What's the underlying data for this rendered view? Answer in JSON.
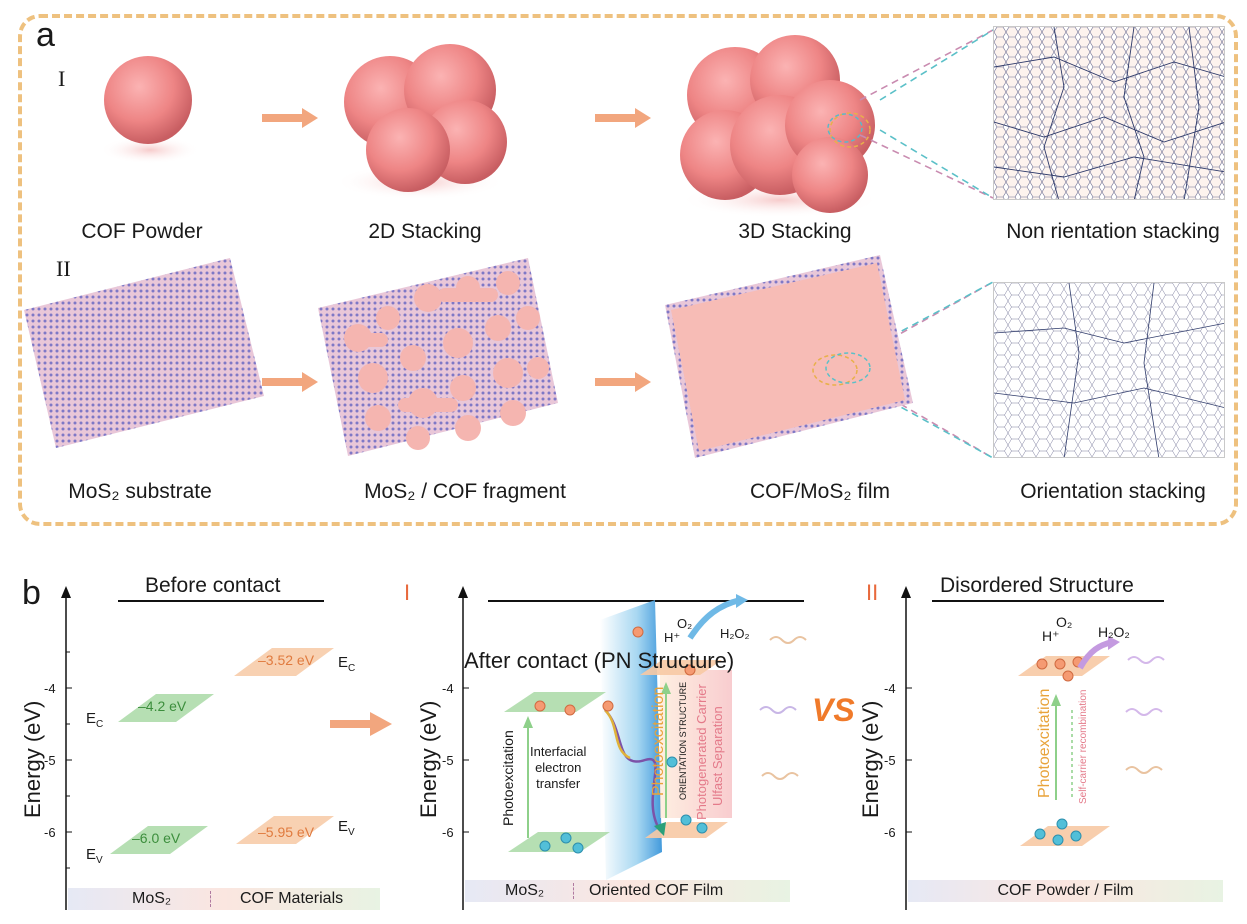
{
  "panel_a": {
    "letter": "a",
    "row1_roman": "I",
    "row2_roman": "II",
    "row1_captions": [
      "COF Powder",
      "2D Stacking",
      "3D Stacking",
      "Non rientation stacking"
    ],
    "row2_captions": [
      "MoS₂ substrate",
      "MoS₂ / COF fragment",
      "COF/MoS₂ film",
      "Orientation stacking"
    ]
  },
  "panel_b": {
    "letter": "b",
    "axis_title": "Energy (eV)",
    "ticks": [
      "-4",
      "-5",
      "-6"
    ],
    "before": {
      "heading": "Before contact",
      "levels": {
        "mos2_cb": "–4.2 eV",
        "mos2_vb": "–6.0 eV",
        "cof_cb": "–3.52 eV",
        "cof_vb": "–5.95 eV"
      },
      "labels": {
        "ec_left": "E",
        "ev_left": "E",
        "ec_right": "E",
        "ev_right": "E",
        "sub_c": "C",
        "sub_v": "V"
      },
      "bar": {
        "left": "MoS₂",
        "right": "COF Materials"
      }
    },
    "after": {
      "roman": "I",
      "heading": "After contact (PN Structure)",
      "photoexcitation_left": "Photoexcitation",
      "interfacial": [
        "Interfacial",
        "electron",
        "transfer"
      ],
      "photoexcitation_mid": "Photoexcitation",
      "orientation_structure": "ORIENTATION STRUCTURE",
      "photogenerated": "Photogenerated Carrier",
      "ultrafast": "Ulfast Separation",
      "o2": "O₂",
      "h_plus": "H⁺",
      "h2o2": "H₂O₂",
      "bar": {
        "left": "MoS₂",
        "right": "Oriented COF Film"
      }
    },
    "vs": "VS",
    "disordered": {
      "roman": "II",
      "heading": "Disordered Structure",
      "o2": "O₂",
      "h_plus": "H⁺",
      "h2o2": "H₂O₂",
      "photoexcitation": "Photoexcitation",
      "recombination": "Self-carrier recombination",
      "bar": "COF Powder / Film"
    }
  },
  "colors": {
    "frame": "#eec17f",
    "arrow": "#f2a67e",
    "cof_pink": "#f08a8a",
    "green_plate": "#a9d9a6",
    "orange_plate": "#f7c9a4",
    "blue_arrow": "#3fa9e0",
    "roman_red": "#e8693c"
  }
}
